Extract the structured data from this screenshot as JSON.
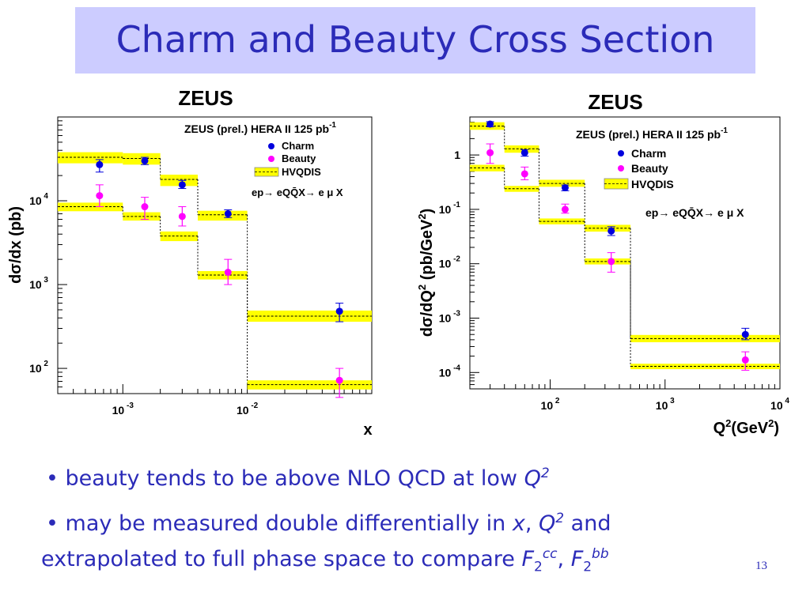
{
  "slide": {
    "title": "Charm and Beauty Cross Section",
    "bullets": [
      {
        "marker": "•",
        "text": "beauty tends to be above NLO QCD at low ",
        "var": "Q",
        "sup": "2"
      },
      {
        "marker": "•",
        "text1": "may be measured double differentially in ",
        "var1": "x",
        "sep1": ", ",
        "var2": "Q",
        "sup2": "2",
        "text2": " and",
        "line2": "extrapolated to full phase space to compare ",
        "F": "F",
        "sub": "2",
        "supcc": "cc",
        "sep2": ",  ",
        "supbb": "bb"
      }
    ],
    "page_number": "13"
  },
  "colors": {
    "title_band": "#ccccff",
    "title_text": "#2b2bb8",
    "charm": "#0000dd",
    "beauty": "#ff00ff",
    "band": "#ffff00"
  },
  "chart_data": [
    {
      "type": "scatter",
      "logo": "ZEUS",
      "ylabel": "dσ/dx (pb)",
      "xlabel": "x",
      "xscale": "log",
      "yscale": "log",
      "xlim": [
        0.0003,
        0.1
      ],
      "ylim": [
        50,
        100000
      ],
      "x_ticks": [
        {
          "base": "10",
          "exp": "-3",
          "value": 0.001
        },
        {
          "base": "10",
          "exp": "-2",
          "value": 0.01
        }
      ],
      "y_ticks": [
        {
          "base": "10",
          "exp": "2",
          "value": 100
        },
        {
          "base": "10",
          "exp": "3",
          "value": 1000
        },
        {
          "base": "10",
          "exp": "4",
          "value": 10000
        }
      ],
      "legend": {
        "position": "top-right",
        "header": "ZEUS (prel.) HERA II 125 pb",
        "header_sup": "-1",
        "charm": "Charm",
        "beauty": "Beauty",
        "band": "HVQDIS",
        "process": "ep→ eQQ̄X→ e μ X"
      },
      "bins": [
        0.0003,
        0.001,
        0.002,
        0.004,
        0.01,
        0.1
      ],
      "hvqdis_charm": [
        {
          "c": 33000,
          "lo": 28000,
          "hi": 38000
        },
        {
          "c": 32000,
          "lo": 27000,
          "hi": 37000
        },
        {
          "c": 18000,
          "lo": 15000,
          "hi": 20500
        },
        {
          "c": 6800,
          "lo": 5800,
          "hi": 7600
        },
        {
          "c": 420,
          "lo": 360,
          "hi": 490
        }
      ],
      "hvqdis_beauty": [
        {
          "c": 8500,
          "lo": 7500,
          "hi": 9500
        },
        {
          "c": 6500,
          "lo": 5800,
          "hi": 7300
        },
        {
          "c": 3800,
          "lo": 3300,
          "hi": 4300
        },
        {
          "c": 1300,
          "lo": 1150,
          "hi": 1450
        },
        {
          "c": 64,
          "lo": 56,
          "hi": 72
        }
      ],
      "charm": [
        {
          "x": 0.00065,
          "y": 27000,
          "lo": 22000,
          "hi": 31000
        },
        {
          "x": 0.0015,
          "y": 30000,
          "lo": 27000,
          "hi": 33000
        },
        {
          "x": 0.003,
          "y": 15500,
          "lo": 14000,
          "hi": 17500
        },
        {
          "x": 0.007,
          "y": 7000,
          "lo": 6300,
          "hi": 7800
        },
        {
          "x": 0.055,
          "y": 480,
          "lo": 360,
          "hi": 600
        }
      ],
      "beauty": [
        {
          "x": 0.00065,
          "y": 11500,
          "lo": 8500,
          "hi": 15500
        },
        {
          "x": 0.0015,
          "y": 8500,
          "lo": 6000,
          "hi": 11000
        },
        {
          "x": 0.003,
          "y": 6500,
          "lo": 5000,
          "hi": 8500
        },
        {
          "x": 0.007,
          "y": 1400,
          "lo": 1000,
          "hi": 2000
        },
        {
          "x": 0.055,
          "y": 72,
          "lo": 45,
          "hi": 100
        }
      ]
    },
    {
      "type": "scatter",
      "logo": "ZEUS",
      "ylabel": "dσ/dQ² (pb/GeV²)",
      "ylabel_main": "dσ/dQ",
      "ylabel_sup": "2",
      "ylabel_unit": " (pb/GeV",
      "ylabel_unit_sup": "2",
      "ylabel_close": ")",
      "xlabel": "Q²(GeV²)",
      "xlabel_main": "Q",
      "xlabel_sup": "2",
      "xlabel_unit": "(GeV",
      "xlabel_unit_sup": "2",
      "xlabel_close": ")",
      "xscale": "log",
      "yscale": "log",
      "xlim": [
        20,
        10000
      ],
      "ylim": [
        5e-05,
        5
      ],
      "x_ticks": [
        {
          "base": "10",
          "exp": "2",
          "value": 100
        },
        {
          "base": "10",
          "exp": "3",
          "value": 1000
        },
        {
          "base": "10",
          "exp": "4",
          "value": 10000
        }
      ],
      "y_ticks": [
        {
          "base": "1",
          "exp": "",
          "value": 1
        },
        {
          "base": "10",
          "exp": "-1",
          "value": 0.1
        },
        {
          "base": "10",
          "exp": "-2",
          "value": 0.01
        },
        {
          "base": "10",
          "exp": "-3",
          "value": 0.001
        },
        {
          "base": "10",
          "exp": "-4",
          "value": 0.0001
        }
      ],
      "legend": {
        "position": "top-right",
        "header": "ZEUS (prel.) HERA II 125 pb",
        "header_sup": "-1",
        "charm": "Charm",
        "beauty": "Beauty",
        "band": "HVQDIS",
        "process": "ep→ eQQ̄X→ e μ X"
      },
      "bins": [
        20,
        40,
        80,
        200,
        500,
        10000
      ],
      "hvqdis_charm": [
        {
          "c": 3.4,
          "lo": 2.9,
          "hi": 4.0
        },
        {
          "c": 1.3,
          "lo": 1.1,
          "hi": 1.5
        },
        {
          "c": 0.3,
          "lo": 0.26,
          "hi": 0.35
        },
        {
          "c": 0.045,
          "lo": 0.039,
          "hi": 0.052
        },
        {
          "c": 0.00042,
          "lo": 0.00036,
          "hi": 0.00049
        }
      ],
      "hvqdis_beauty": [
        {
          "c": 0.58,
          "lo": 0.5,
          "hi": 0.66
        },
        {
          "c": 0.24,
          "lo": 0.21,
          "hi": 0.27
        },
        {
          "c": 0.06,
          "lo": 0.053,
          "hi": 0.068
        },
        {
          "c": 0.011,
          "lo": 0.0097,
          "hi": 0.0125
        },
        {
          "c": 0.00013,
          "lo": 0.000115,
          "hi": 0.000145
        }
      ],
      "charm": [
        {
          "x": 30,
          "y": 3.7,
          "lo": 3.3,
          "hi": 4.1
        },
        {
          "x": 60,
          "y": 1.1,
          "lo": 0.95,
          "hi": 1.25
        },
        {
          "x": 135,
          "y": 0.25,
          "lo": 0.22,
          "hi": 0.28
        },
        {
          "x": 340,
          "y": 0.04,
          "lo": 0.033,
          "hi": 0.048
        },
        {
          "x": 5000,
          "y": 0.0005,
          "lo": 0.0004,
          "hi": 0.00065
        }
      ],
      "beauty": [
        {
          "x": 30,
          "y": 1.1,
          "lo": 0.7,
          "hi": 1.6
        },
        {
          "x": 60,
          "y": 0.45,
          "lo": 0.35,
          "hi": 0.6
        },
        {
          "x": 135,
          "y": 0.1,
          "lo": 0.085,
          "hi": 0.125
        },
        {
          "x": 340,
          "y": 0.011,
          "lo": 0.007,
          "hi": 0.016
        },
        {
          "x": 5000,
          "y": 0.00017,
          "lo": 0.00011,
          "hi": 0.00024
        }
      ]
    }
  ]
}
